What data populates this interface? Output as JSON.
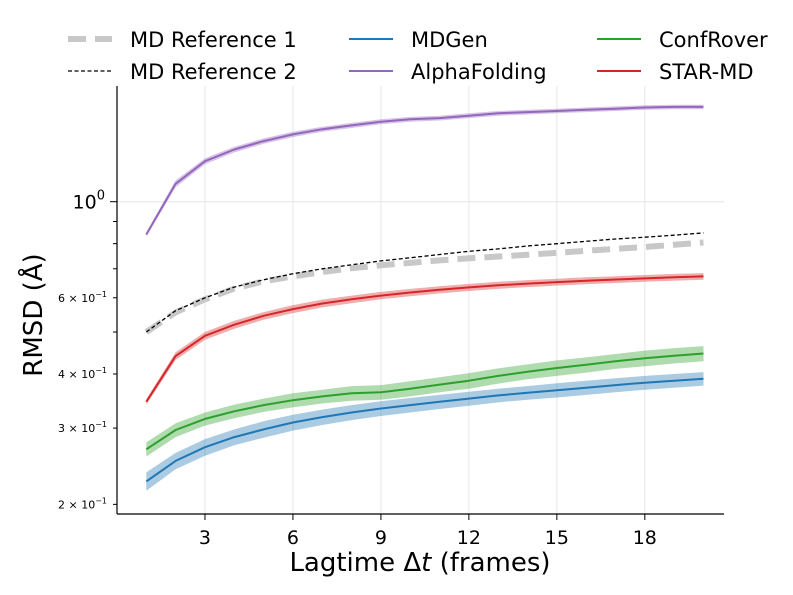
{
  "chart_data": {
    "type": "line",
    "title": "",
    "xlabel": "Lagtime Δt (frames)",
    "xlabel_main": "Lagtime Δ",
    "xlabel_var": "t",
    "xlabel_unit": " (frames)",
    "ylabel": "RMSD (Å)",
    "yscale": "log",
    "xlim": [
      0,
      20.7
    ],
    "ylim": [
      0.19,
      1.85
    ],
    "grid": "vertical",
    "legend_position": "top",
    "x": [
      1,
      2,
      3,
      4,
      5,
      6,
      7,
      8,
      9,
      10,
      11,
      12,
      13,
      14,
      15,
      16,
      17,
      18,
      19,
      20
    ],
    "xticks": [
      {
        "value": 3,
        "label": "3"
      },
      {
        "value": 6,
        "label": "6"
      },
      {
        "value": 9,
        "label": "9"
      },
      {
        "value": 12,
        "label": "12"
      },
      {
        "value": 15,
        "label": "15"
      },
      {
        "value": 18,
        "label": "18"
      }
    ],
    "yticks_major": [
      {
        "value": 1.0,
        "base": "10",
        "exp": "0"
      }
    ],
    "yticks_minor": [
      {
        "value": 0.2,
        "coef": "2",
        "exp": "−1"
      },
      {
        "value": 0.3,
        "coef": "3",
        "exp": "−1"
      },
      {
        "value": 0.4,
        "coef": "4",
        "exp": "−1"
      },
      {
        "value": 0.6,
        "coef": "6",
        "exp": "−1"
      }
    ],
    "yticks_unlabeled": [
      0.5,
      0.7,
      0.8,
      0.9
    ],
    "series": [
      {
        "name": "MD Reference 1",
        "color": "#c8c8c8",
        "style": "thick-dashed",
        "values": [
          0.5,
          0.555,
          0.595,
          0.63,
          0.655,
          0.672,
          0.688,
          0.702,
          0.713,
          0.722,
          0.732,
          0.74,
          0.747,
          0.754,
          0.762,
          0.77,
          0.778,
          0.786,
          0.795,
          0.805
        ]
      },
      {
        "name": "MD Reference 2",
        "color": "#000000",
        "style": "thin-dashed",
        "values": [
          0.5,
          0.56,
          0.6,
          0.635,
          0.66,
          0.682,
          0.7,
          0.715,
          0.73,
          0.742,
          0.755,
          0.768,
          0.778,
          0.79,
          0.8,
          0.81,
          0.82,
          0.828,
          0.837,
          0.847
        ]
      },
      {
        "name": "MDGen",
        "color": "#1f77b4",
        "style": "solid",
        "values": [
          0.226,
          0.252,
          0.271,
          0.286,
          0.298,
          0.309,
          0.318,
          0.326,
          0.333,
          0.339,
          0.345,
          0.351,
          0.357,
          0.362,
          0.367,
          0.372,
          0.377,
          0.382,
          0.386,
          0.39
        ],
        "band": [
          0.011,
          0.011,
          0.012,
          0.012,
          0.013,
          0.013,
          0.013,
          0.013,
          0.013,
          0.013,
          0.013,
          0.013,
          0.013,
          0.013,
          0.014,
          0.014,
          0.014,
          0.014,
          0.014,
          0.014
        ]
      },
      {
        "name": "AlphaFolding",
        "color": "#9467bd",
        "style": "solid",
        "values": [
          0.84,
          1.1,
          1.24,
          1.32,
          1.38,
          1.43,
          1.47,
          1.5,
          1.53,
          1.55,
          1.56,
          1.58,
          1.6,
          1.61,
          1.62,
          1.63,
          1.64,
          1.65,
          1.655,
          1.655
        ],
        "band": [
          0.01,
          0.02,
          0.02,
          0.02,
          0.02,
          0.02,
          0.02,
          0.02,
          0.02,
          0.02,
          0.02,
          0.02,
          0.02,
          0.02,
          0.02,
          0.02,
          0.02,
          0.02,
          0.02,
          0.02
        ]
      },
      {
        "name": "ConfRover",
        "color": "#2ca02c",
        "style": "solid",
        "values": [
          0.268,
          0.297,
          0.315,
          0.328,
          0.339,
          0.348,
          0.355,
          0.361,
          0.363,
          0.37,
          0.378,
          0.386,
          0.396,
          0.405,
          0.413,
          0.42,
          0.428,
          0.435,
          0.441,
          0.446
        ],
        "band": [
          0.01,
          0.011,
          0.011,
          0.012,
          0.012,
          0.013,
          0.013,
          0.014,
          0.014,
          0.015,
          0.015,
          0.016,
          0.016,
          0.016,
          0.017,
          0.017,
          0.017,
          0.018,
          0.018,
          0.018
        ]
      },
      {
        "name": "STAR-MD",
        "color": "#d62728",
        "style": "solid",
        "values": [
          0.345,
          0.44,
          0.49,
          0.52,
          0.545,
          0.565,
          0.582,
          0.595,
          0.607,
          0.617,
          0.626,
          0.634,
          0.641,
          0.647,
          0.652,
          0.657,
          0.661,
          0.665,
          0.669,
          0.672
        ],
        "band": [
          0.005,
          0.009,
          0.01,
          0.011,
          0.011,
          0.012,
          0.012,
          0.012,
          0.012,
          0.012,
          0.012,
          0.012,
          0.012,
          0.012,
          0.012,
          0.012,
          0.012,
          0.012,
          0.012,
          0.012
        ]
      }
    ]
  }
}
